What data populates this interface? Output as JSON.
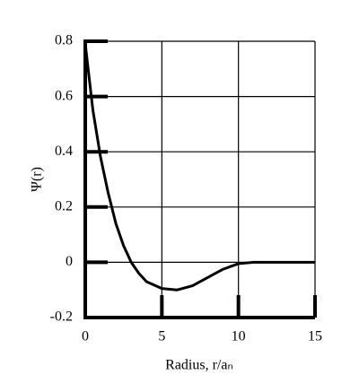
{
  "chart_data": {
    "type": "line",
    "xlabel": "Radius, r/aₙ",
    "ylabel": "Ψ(r)",
    "x": [
      0,
      0.5,
      1,
      1.5,
      2,
      2.5,
      3,
      3.5,
      4,
      5,
      6,
      7,
      8,
      9,
      10,
      11,
      12,
      13,
      14,
      15
    ],
    "series": [
      {
        "color": "#000000",
        "values": [
          0.79,
          0.55,
          0.38,
          0.25,
          0.14,
          0.06,
          0.0,
          -0.04,
          -0.07,
          -0.095,
          -0.1,
          -0.085,
          -0.055,
          -0.025,
          -0.005,
          0,
          0,
          0,
          0,
          0
        ]
      }
    ],
    "xlim": [
      0,
      15
    ],
    "xticks": [
      0,
      5,
      10,
      15
    ],
    "ylim": [
      -0.2,
      0.8
    ],
    "yticks": [
      0.8,
      0.6,
      0.4,
      0.2,
      0,
      -0.2
    ],
    "grid": true
  }
}
